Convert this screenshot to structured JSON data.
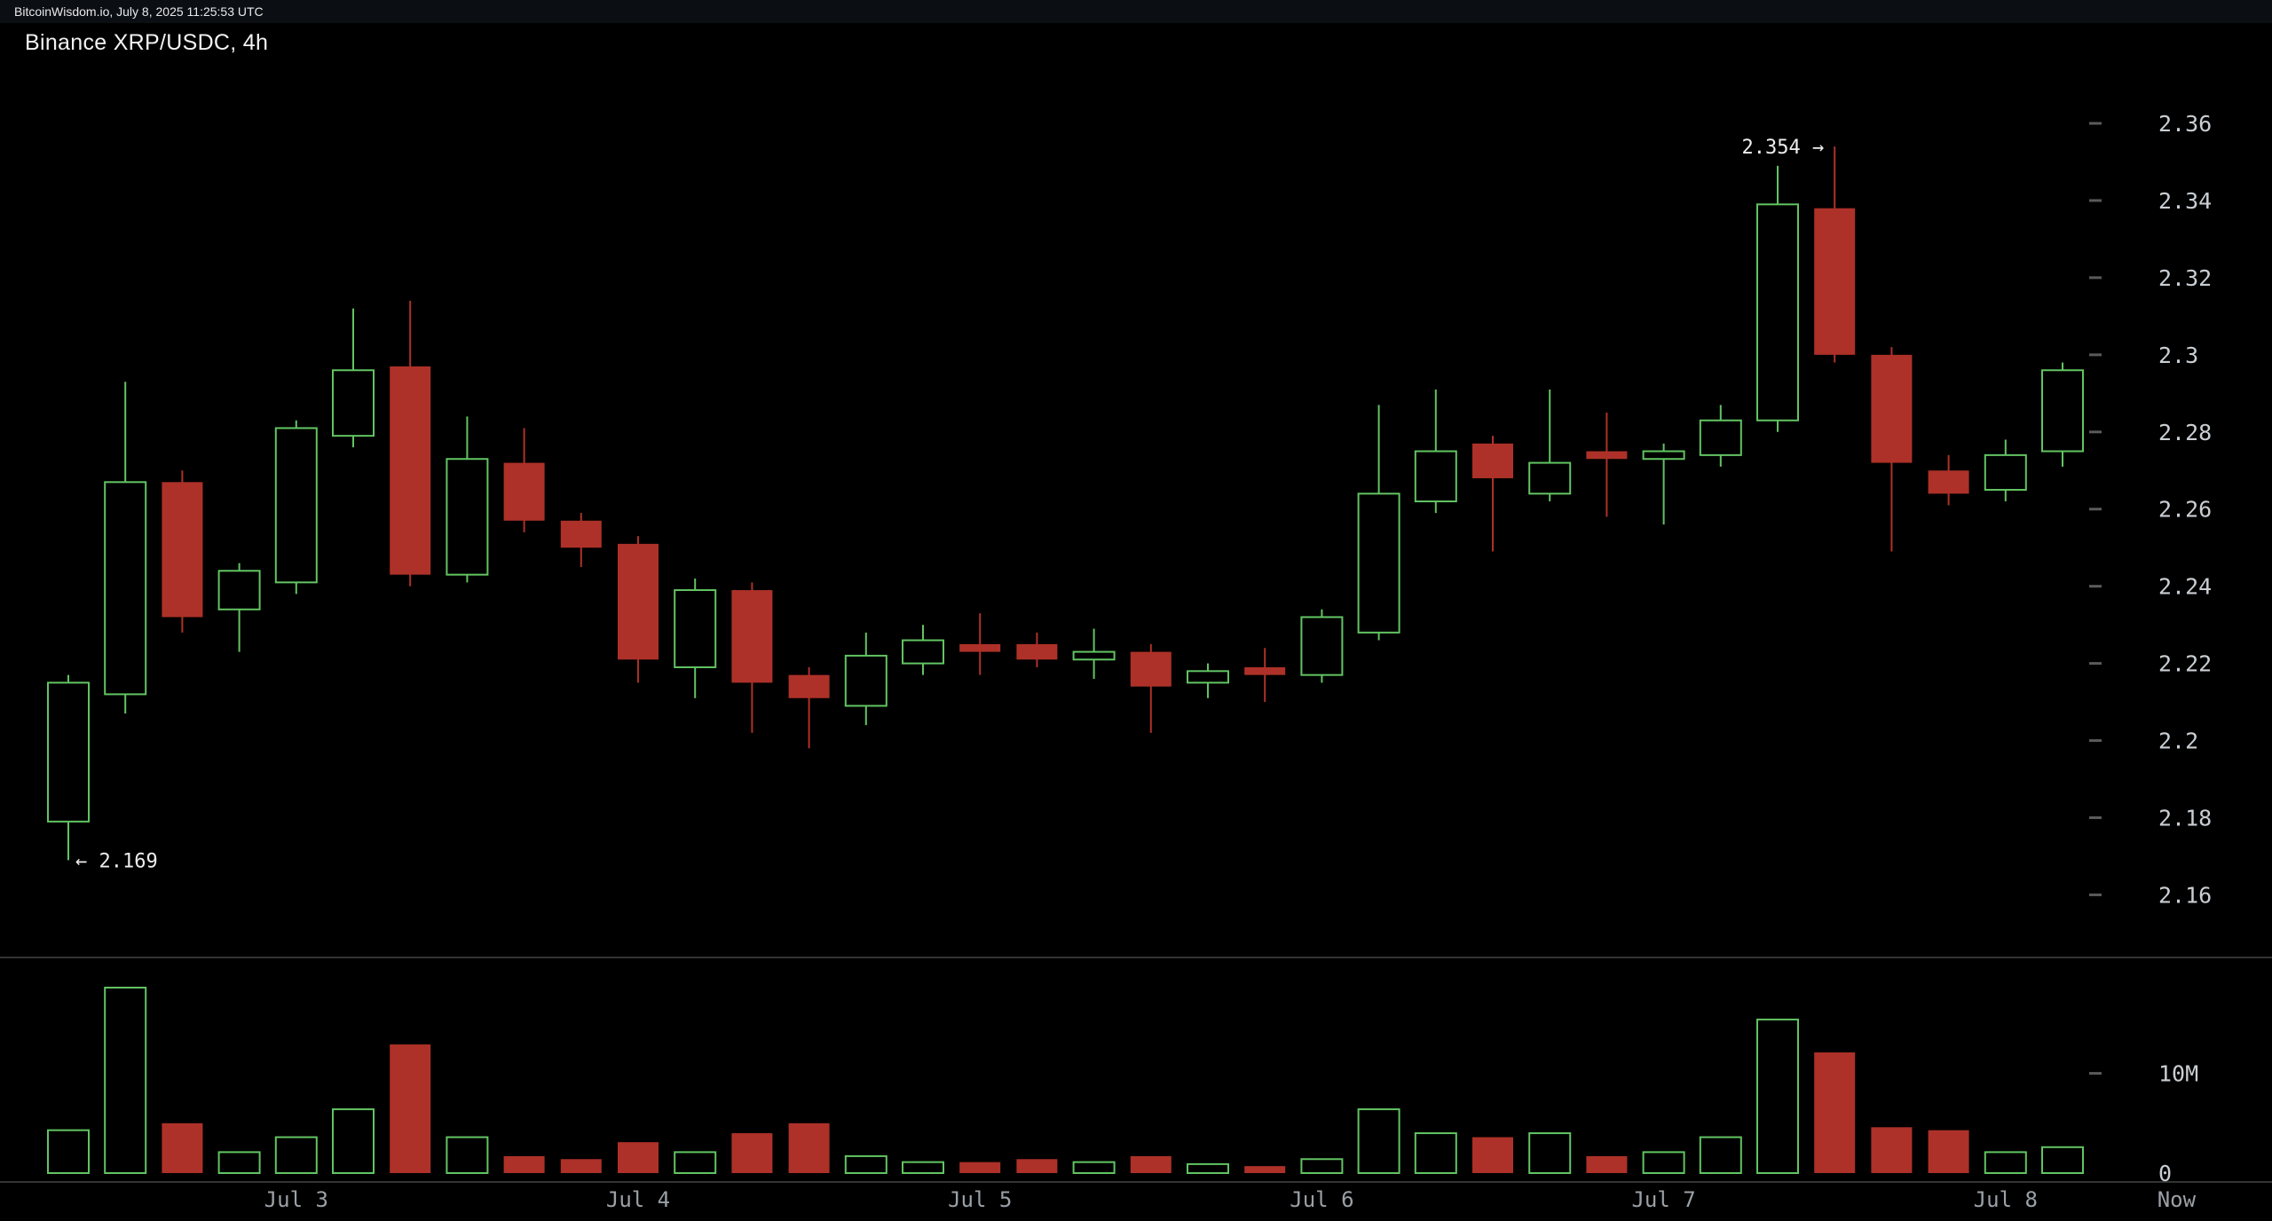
{
  "topbar": {
    "text": "BitcoinWisdom.io, July 8, 2025 11:25:53 UTC"
  },
  "title": "Binance XRP/USDC, 4h",
  "chart_data": {
    "type": "candlestick",
    "title": "Binance XRP/USDC, 4h",
    "symbol": "Binance XRP/USDC",
    "interval": "4h",
    "legend_position": "none",
    "grid": false,
    "price_axis": {
      "range": [
        2.144,
        2.386
      ],
      "ticks": [
        {
          "v": 2.36,
          "label": "2.36"
        },
        {
          "v": 2.34,
          "label": "2.34"
        },
        {
          "v": 2.32,
          "label": "2.32"
        },
        {
          "v": 2.3,
          "label": "2.3"
        },
        {
          "v": 2.28,
          "label": "2.28"
        },
        {
          "v": 2.26,
          "label": "2.26"
        },
        {
          "v": 2.24,
          "label": "2.24"
        },
        {
          "v": 2.22,
          "label": "2.22"
        },
        {
          "v": 2.2,
          "label": "2.2"
        },
        {
          "v": 2.18,
          "label": "2.18"
        },
        {
          "v": 2.16,
          "label": "2.16"
        }
      ]
    },
    "volume_axis": {
      "range_millions": [
        0,
        21
      ],
      "ticks": [
        {
          "v": 10,
          "label": "10M"
        },
        {
          "v": 0,
          "label": "0"
        }
      ]
    },
    "x_axis": {
      "labels": [
        {
          "label": "Jul 3",
          "index": 4
        },
        {
          "label": "Jul 4",
          "index": 10
        },
        {
          "label": "Jul 5",
          "index": 16
        },
        {
          "label": "Jul 6",
          "index": 22
        },
        {
          "label": "Jul 7",
          "index": 28
        },
        {
          "label": "Jul 8",
          "index": 34
        },
        {
          "label": "Now",
          "index": 37
        }
      ]
    },
    "candles": [
      {
        "o": 2.179,
        "h": 2.217,
        "l": 2.169,
        "c": 2.215,
        "v": 4.3
      },
      {
        "o": 2.212,
        "h": 2.293,
        "l": 2.207,
        "c": 2.267,
        "v": 18.6
      },
      {
        "o": 2.267,
        "h": 2.27,
        "l": 2.228,
        "c": 2.232,
        "v": 5.0
      },
      {
        "o": 2.234,
        "h": 2.246,
        "l": 2.223,
        "c": 2.244,
        "v": 2.1
      },
      {
        "o": 2.241,
        "h": 2.283,
        "l": 2.238,
        "c": 2.281,
        "v": 3.6
      },
      {
        "o": 2.279,
        "h": 2.312,
        "l": 2.276,
        "c": 2.296,
        "v": 6.4
      },
      {
        "o": 2.297,
        "h": 2.314,
        "l": 2.24,
        "c": 2.243,
        "v": 12.9
      },
      {
        "o": 2.243,
        "h": 2.284,
        "l": 2.241,
        "c": 2.273,
        "v": 3.6
      },
      {
        "o": 2.272,
        "h": 2.281,
        "l": 2.254,
        "c": 2.257,
        "v": 1.7
      },
      {
        "o": 2.257,
        "h": 2.259,
        "l": 2.245,
        "c": 2.25,
        "v": 1.4
      },
      {
        "o": 2.251,
        "h": 2.253,
        "l": 2.215,
        "c": 2.221,
        "v": 3.1
      },
      {
        "o": 2.219,
        "h": 2.242,
        "l": 2.211,
        "c": 2.239,
        "v": 2.1
      },
      {
        "o": 2.239,
        "h": 2.241,
        "l": 2.202,
        "c": 2.215,
        "v": 4.0
      },
      {
        "o": 2.217,
        "h": 2.219,
        "l": 2.198,
        "c": 2.211,
        "v": 5.0
      },
      {
        "o": 2.209,
        "h": 2.228,
        "l": 2.204,
        "c": 2.222,
        "v": 1.7
      },
      {
        "o": 2.22,
        "h": 2.23,
        "l": 2.217,
        "c": 2.226,
        "v": 1.1
      },
      {
        "o": 2.225,
        "h": 2.233,
        "l": 2.217,
        "c": 2.223,
        "v": 1.1
      },
      {
        "o": 2.225,
        "h": 2.228,
        "l": 2.219,
        "c": 2.221,
        "v": 1.4
      },
      {
        "o": 2.221,
        "h": 2.229,
        "l": 2.216,
        "c": 2.223,
        "v": 1.1
      },
      {
        "o": 2.223,
        "h": 2.225,
        "l": 2.202,
        "c": 2.214,
        "v": 1.7
      },
      {
        "o": 2.215,
        "h": 2.22,
        "l": 2.211,
        "c": 2.218,
        "v": 0.9
      },
      {
        "o": 2.219,
        "h": 2.224,
        "l": 2.21,
        "c": 2.217,
        "v": 0.7
      },
      {
        "o": 2.217,
        "h": 2.234,
        "l": 2.215,
        "c": 2.232,
        "v": 1.4
      },
      {
        "o": 2.228,
        "h": 2.287,
        "l": 2.226,
        "c": 2.264,
        "v": 6.4
      },
      {
        "o": 2.262,
        "h": 2.291,
        "l": 2.259,
        "c": 2.275,
        "v": 4.0
      },
      {
        "o": 2.277,
        "h": 2.279,
        "l": 2.249,
        "c": 2.268,
        "v": 3.6
      },
      {
        "o": 2.264,
        "h": 2.291,
        "l": 2.262,
        "c": 2.272,
        "v": 4.0
      },
      {
        "o": 2.275,
        "h": 2.285,
        "l": 2.258,
        "c": 2.273,
        "v": 1.7
      },
      {
        "o": 2.273,
        "h": 2.277,
        "l": 2.256,
        "c": 2.275,
        "v": 2.1
      },
      {
        "o": 2.274,
        "h": 2.287,
        "l": 2.271,
        "c": 2.283,
        "v": 3.6
      },
      {
        "o": 2.283,
        "h": 2.349,
        "l": 2.28,
        "c": 2.339,
        "v": 15.4
      },
      {
        "o": 2.338,
        "h": 2.354,
        "l": 2.298,
        "c": 2.3,
        "v": 12.1
      },
      {
        "o": 2.3,
        "h": 2.302,
        "l": 2.249,
        "c": 2.272,
        "v": 4.6
      },
      {
        "o": 2.27,
        "h": 2.274,
        "l": 2.261,
        "c": 2.264,
        "v": 4.3
      },
      {
        "o": 2.265,
        "h": 2.278,
        "l": 2.262,
        "c": 2.274,
        "v": 2.1
      },
      {
        "o": 2.275,
        "h": 2.298,
        "l": 2.271,
        "c": 2.296,
        "v": 2.6
      }
    ],
    "annotations": [
      {
        "text": "← 2.169",
        "candle": 0,
        "price": 2.169,
        "side": "right"
      },
      {
        "text": "2.354 →",
        "candle": 31,
        "price": 2.354,
        "side": "left"
      }
    ],
    "colors": {
      "up": "#62c462",
      "down": "#ad3128",
      "background": "#000000",
      "price_label": "#c9ced3",
      "date_label": "#9aa0a6",
      "tick_dash": "#5a5a5a",
      "separator": "#333333",
      "annotation": "#ededed"
    }
  }
}
